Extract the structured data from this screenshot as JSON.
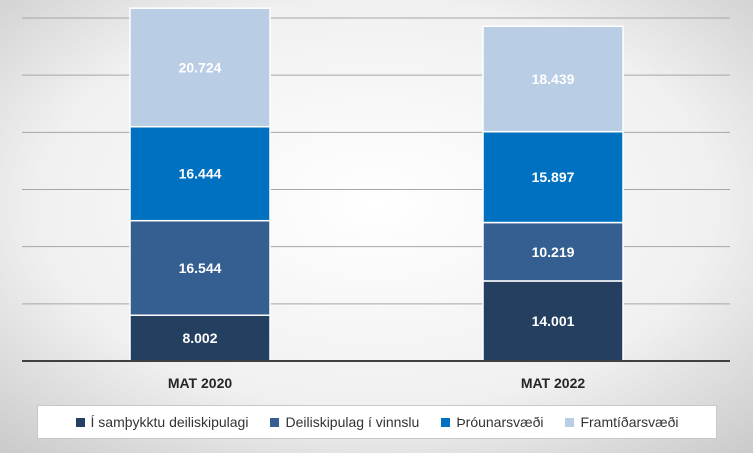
{
  "chart_data": {
    "type": "bar",
    "stacked": true,
    "categories": [
      "MAT 2020",
      "MAT 2022"
    ],
    "series": [
      {
        "name": "Í samþykktu deiliskipulagi",
        "values": [
          8002,
          14001
        ],
        "labels": [
          "8.002",
          "14.001"
        ],
        "color": "#243f60"
      },
      {
        "name": "Deiliskipulag í vinnslu",
        "values": [
          16544,
          10219
        ],
        "labels": [
          "16.544",
          "10.219"
        ],
        "color": "#365f91"
      },
      {
        "name": "Þróunarsvæði",
        "values": [
          16444,
          15897
        ],
        "labels": [
          "16.444",
          "15.897"
        ],
        "color": "#0070c0"
      },
      {
        "name": "Framtíðarsvæði",
        "values": [
          20724,
          18439
        ],
        "labels": [
          "20.724",
          "18.439"
        ],
        "color": "#b9cde5"
      }
    ],
    "ylim": [
      0,
      60000
    ],
    "grid": true,
    "legend": "bottom",
    "title": "",
    "xlabel": "",
    "ylabel": ""
  }
}
